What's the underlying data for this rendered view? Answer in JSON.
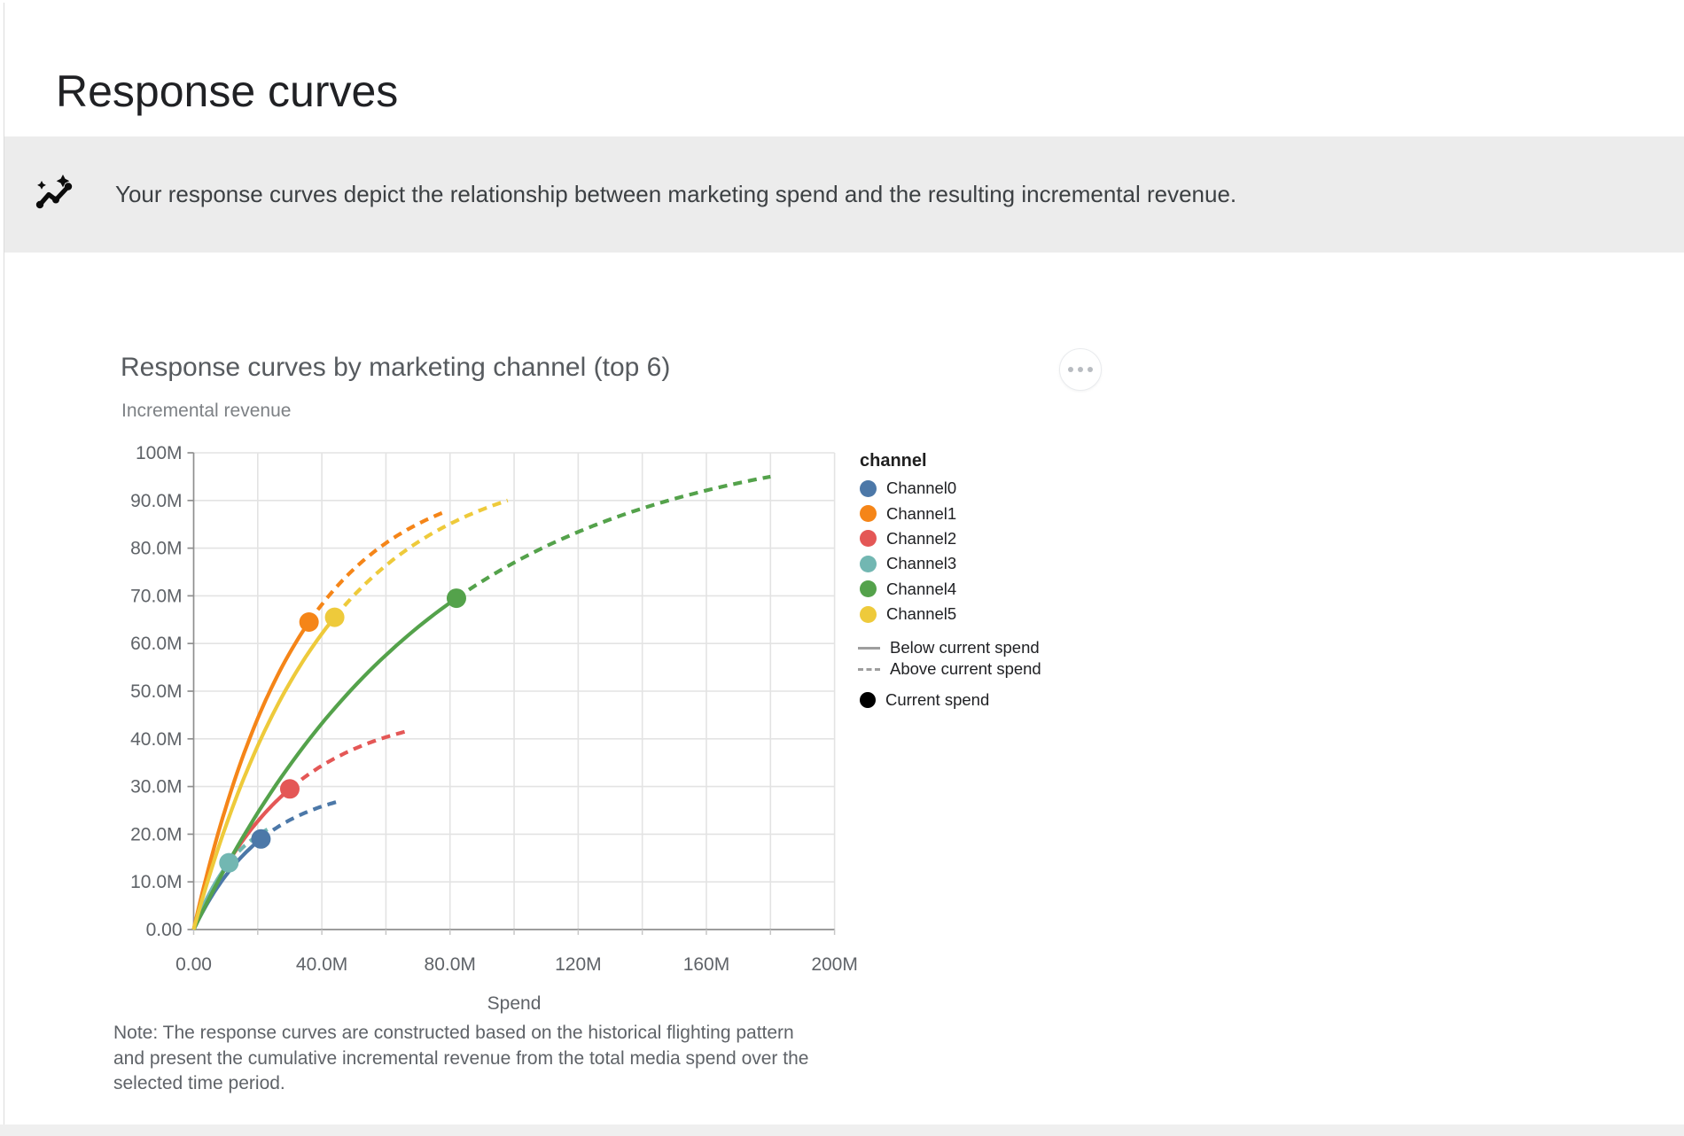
{
  "page": {
    "title": "Response curves",
    "banner": {
      "icon": "auto-graph-icon",
      "text": "Your response curves depict the relationship between marketing spend and the resulting incremental revenue."
    }
  },
  "chart": {
    "title": "Response curves by marketing channel (top 6)",
    "subtitle": "Incremental revenue",
    "note_lines": [
      "Note: The response curves are constructed based on the historical flighting pattern",
      "and present the cumulative incremental revenue from the total media spend over the",
      "selected time period."
    ]
  },
  "legend": {
    "title": "channel",
    "channels": [
      {
        "label": "Channel0",
        "color": "#4c78a8"
      },
      {
        "label": "Channel1",
        "color": "#f58518"
      },
      {
        "label": "Channel2",
        "color": "#e45756"
      },
      {
        "label": "Channel3",
        "color": "#72b7b2"
      },
      {
        "label": "Channel4",
        "color": "#54a24b"
      },
      {
        "label": "Channel5",
        "color": "#eeca3b"
      }
    ],
    "line_styles": [
      {
        "label": "Below current spend",
        "style": "solid"
      },
      {
        "label": "Above current spend",
        "style": "dashed"
      }
    ],
    "point": {
      "label": "Current spend",
      "color": "#000000"
    }
  },
  "chart_data": {
    "type": "line",
    "title": "Response curves by marketing channel (top 6)",
    "ylabel": "Incremental revenue",
    "xlabel": "Spend",
    "units": "millions",
    "xlim": [
      0,
      200
    ],
    "ylim": [
      0,
      100
    ],
    "grid": true,
    "legend_position": "right",
    "x_grid_step": 20,
    "y_grid_step": 10,
    "x_ticks": [
      {
        "value": 0,
        "label": "0.00"
      },
      {
        "value": 40,
        "label": "40.0M"
      },
      {
        "value": 80,
        "label": "80.0M"
      },
      {
        "value": 120,
        "label": "120M"
      },
      {
        "value": 160,
        "label": "160M"
      },
      {
        "value": 200,
        "label": "200M"
      }
    ],
    "y_ticks": [
      {
        "value": 0,
        "label": "0.00"
      },
      {
        "value": 10,
        "label": "10.0M"
      },
      {
        "value": 20,
        "label": "20.0M"
      },
      {
        "value": 30,
        "label": "30.0M"
      },
      {
        "value": 40,
        "label": "40.0M"
      },
      {
        "value": 50,
        "label": "50.0M"
      },
      {
        "value": 60,
        "label": "60.0M"
      },
      {
        "value": 70,
        "label": "70.0M"
      },
      {
        "value": 80,
        "label": "80.0M"
      },
      {
        "value": 90,
        "label": "90.0M"
      },
      {
        "value": 100,
        "label": "100M"
      }
    ],
    "line_styles": {
      "below_current_spend": "solid",
      "above_current_spend": "dashed"
    },
    "curves_start_at_origin": true,
    "series": [
      {
        "name": "Channel0",
        "color": "#4c78a8",
        "current_spend": {
          "x": 21,
          "y": 19
        },
        "curve_end": {
          "x": 46,
          "y": 27
        }
      },
      {
        "name": "Channel1",
        "color": "#f58518",
        "current_spend": {
          "x": 36,
          "y": 64.5
        },
        "curve_end": {
          "x": 78,
          "y": 87.5
        }
      },
      {
        "name": "Channel2",
        "color": "#e45756",
        "current_spend": {
          "x": 30,
          "y": 29.5
        },
        "curve_end": {
          "x": 66,
          "y": 41.5
        }
      },
      {
        "name": "Channel3",
        "color": "#72b7b2",
        "current_spend": {
          "x": 11,
          "y": 14
        },
        "curve_end": {
          "x": 23,
          "y": 21
        }
      },
      {
        "name": "Channel4",
        "color": "#54a24b",
        "current_spend": {
          "x": 82,
          "y": 69.5
        },
        "curve_end": {
          "x": 180,
          "y": 95
        }
      },
      {
        "name": "Channel5",
        "color": "#eeca3b",
        "current_spend": {
          "x": 44,
          "y": 65.5
        },
        "curve_end": {
          "x": 98,
          "y": 90
        }
      }
    ]
  }
}
